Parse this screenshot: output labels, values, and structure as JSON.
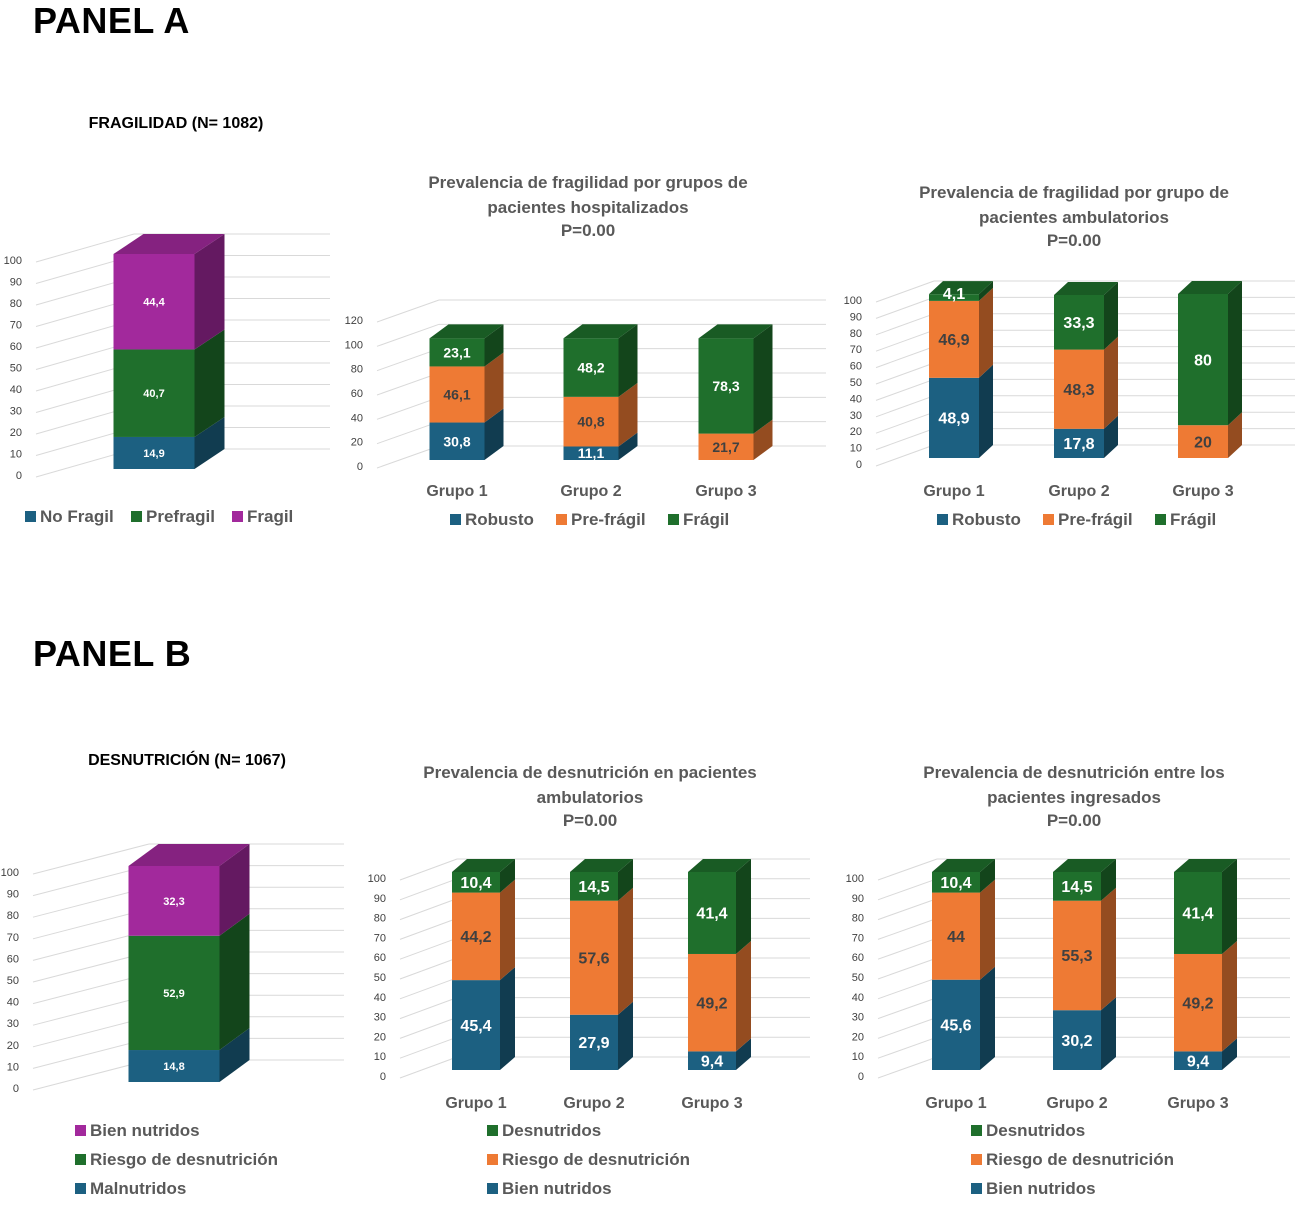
{
  "panel_a_label": "PANEL A",
  "panel_b_label": "PANEL B",
  "colors": {
    "blue": "#1c6081",
    "orange": "#ee7a34",
    "green": "#1f6f2c",
    "purple": "#a2299c",
    "grid": "#d9d9d9"
  },
  "chart_data": [
    {
      "type": "bar",
      "stacked": true,
      "three_d": true,
      "title": "FRAGILIDAD (N= 1082)",
      "categories": [
        ""
      ],
      "ylim": [
        0,
        100
      ],
      "yticks": [
        "0",
        "10",
        "20",
        "30",
        "40",
        "50",
        "60",
        "70",
        "80",
        "90",
        "100"
      ],
      "series": [
        {
          "name": "No Fragil",
          "color": "blue",
          "values": [
            14.9
          ],
          "labels": [
            "14,9"
          ]
        },
        {
          "name": "Prefragil",
          "color": "green",
          "values": [
            40.7
          ],
          "labels": [
            "40,7"
          ]
        },
        {
          "name": "Fragil",
          "color": "purple",
          "values": [
            44.4
          ],
          "labels": [
            "44,4"
          ]
        }
      ]
    },
    {
      "type": "bar",
      "stacked": true,
      "three_d": true,
      "title": "Prevalencia de fragilidad por grupos de pacientes hospitalizados P=0.00",
      "title_lines": [
        "Prevalencia de fragilidad por grupos de",
        "pacientes hospitalizados",
        "P=0.00"
      ],
      "categories": [
        "Grupo 1",
        "Grupo 2",
        "Grupo 3"
      ],
      "ylim": [
        0,
        120
      ],
      "yticks": [
        "0",
        "20",
        "40",
        "60",
        "80",
        "100",
        "120"
      ],
      "series": [
        {
          "name": "Robusto",
          "color": "blue",
          "values": [
            30.8,
            11.1,
            0
          ],
          "labels": [
            "30,8",
            "11,1",
            ""
          ]
        },
        {
          "name": "Pre-frágil",
          "color": "orange",
          "values": [
            46.1,
            40.8,
            21.7
          ],
          "labels": [
            "46,1",
            "40,8",
            "21,7"
          ]
        },
        {
          "name": "Frágil",
          "color": "green",
          "values": [
            23.1,
            48.2,
            78.3
          ],
          "labels": [
            "23,1",
            "48,2",
            "78,3"
          ]
        }
      ]
    },
    {
      "type": "bar",
      "stacked": true,
      "three_d": true,
      "title": "Prevalencia de fragilidad por grupo de pacientes ambulatorios P=0.00",
      "title_lines": [
        "Prevalencia de fragilidad por grupo de",
        "pacientes ambulatorios",
        "P=0.00"
      ],
      "categories": [
        "Grupo 1",
        "Grupo 2",
        "Grupo 3"
      ],
      "ylim": [
        0,
        100
      ],
      "yticks": [
        "0",
        "10",
        "20",
        "30",
        "40",
        "50",
        "60",
        "70",
        "80",
        "90",
        "100"
      ],
      "series": [
        {
          "name": "Robusto",
          "color": "blue",
          "values": [
            48.9,
            17.8,
            0
          ],
          "labels": [
            "48,9",
            "17,8",
            ""
          ]
        },
        {
          "name": "Pre-frágil",
          "color": "orange",
          "values": [
            46.9,
            48.3,
            20
          ],
          "labels": [
            "46,9",
            "48,3",
            "20"
          ]
        },
        {
          "name": "Frágil",
          "color": "green",
          "values": [
            4.1,
            33.3,
            80
          ],
          "labels": [
            "4,1",
            "33,3",
            "80"
          ]
        }
      ]
    },
    {
      "type": "bar",
      "stacked": true,
      "three_d": true,
      "title": "DESNUTRICIÓN (N= 1067)",
      "categories": [
        ""
      ],
      "ylim": [
        0,
        100
      ],
      "yticks": [
        "0",
        "10",
        "20",
        "30",
        "40",
        "50",
        "60",
        "70",
        "80",
        "90",
        "100"
      ],
      "series": [
        {
          "name": "Malnutridos",
          "color": "blue",
          "values": [
            14.8
          ],
          "labels": [
            "14,8"
          ]
        },
        {
          "name": "Riesgo de desnutrición",
          "color": "green",
          "values": [
            52.9
          ],
          "labels": [
            "52,9"
          ]
        },
        {
          "name": "Bien nutridos",
          "color": "purple",
          "values": [
            32.3
          ],
          "labels": [
            "32,3"
          ]
        }
      ]
    },
    {
      "type": "bar",
      "stacked": true,
      "three_d": true,
      "title": "Prevalencia de desnutrición en pacientes ambulatorios P=0.00",
      "title_lines": [
        "Prevalencia de desnutrición en pacientes",
        "ambulatorios",
        "P=0.00"
      ],
      "categories": [
        "Grupo 1",
        "Grupo 2",
        "Grupo 3"
      ],
      "ylim": [
        0,
        100
      ],
      "yticks": [
        "0",
        "10",
        "20",
        "30",
        "40",
        "50",
        "60",
        "70",
        "80",
        "90",
        "100"
      ],
      "series": [
        {
          "name": "Bien nutridos",
          "color": "blue",
          "values": [
            45.4,
            27.9,
            9.4
          ],
          "labels": [
            "45,4",
            "27,9",
            "9,4"
          ]
        },
        {
          "name": "Riesgo de desnutrición",
          "color": "orange",
          "values": [
            44.2,
            57.6,
            49.2
          ],
          "labels": [
            "44,2",
            "57,6",
            "49,2"
          ]
        },
        {
          "name": "Desnutridos",
          "color": "green",
          "values": [
            10.4,
            14.5,
            41.4
          ],
          "labels": [
            "10,4",
            "14,5",
            "41,4"
          ]
        }
      ]
    },
    {
      "type": "bar",
      "stacked": true,
      "three_d": true,
      "title": "Prevalencia de desnutrición entre los pacientes ingresados P=0.00",
      "title_lines": [
        "Prevalencia de desnutrición entre los",
        "pacientes ingresados",
        "P=0.00"
      ],
      "categories": [
        "Grupo 1",
        "Grupo 2",
        "Grupo 3"
      ],
      "ylim": [
        0,
        100
      ],
      "yticks": [
        "0",
        "10",
        "20",
        "30",
        "40",
        "50",
        "60",
        "70",
        "80",
        "90",
        "100"
      ],
      "series": [
        {
          "name": "Bien nutridos",
          "color": "blue",
          "values": [
            45.6,
            30.2,
            9.4
          ],
          "labels": [
            "45,6",
            "30,2",
            "9,4"
          ]
        },
        {
          "name": "Riesgo de desnutrición",
          "color": "orange",
          "values": [
            44,
            55.3,
            49.2
          ],
          "labels": [
            "44",
            "55,3",
            "49,2"
          ]
        },
        {
          "name": "Desnutridos",
          "color": "green",
          "values": [
            10.4,
            14.5,
            41.4
          ],
          "labels": [
            "10,4",
            "14,5",
            "41,4"
          ]
        }
      ]
    }
  ]
}
